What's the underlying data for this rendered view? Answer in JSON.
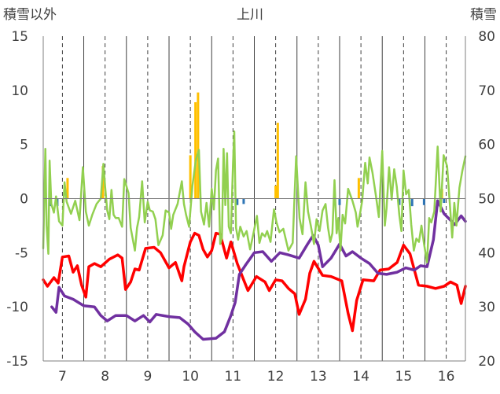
{
  "chart_data": {
    "type": "line",
    "title": "上川",
    "ylabel_left": "積雪以外",
    "ylabel_right": "積雪",
    "ylim_left": [
      -15,
      15
    ],
    "ylim_right": [
      20,
      80
    ],
    "yticks_left": [
      -15,
      -10,
      -5,
      0,
      5,
      10,
      15
    ],
    "yticks_right": [
      20,
      30,
      40,
      50,
      60,
      70,
      80
    ],
    "yticks_left_labels": [
      "-15",
      "-10",
      "-5",
      "0",
      "5",
      "10",
      "15"
    ],
    "yticks_right_labels": [
      "20",
      "30",
      "40",
      "50",
      "60",
      "70",
      "80"
    ],
    "xlim": [
      6.55,
      16.45
    ],
    "x_ticks": [
      7,
      8,
      9,
      10,
      11,
      12,
      13,
      14,
      15,
      16
    ],
    "x_tick_labels": [
      "7",
      "8",
      "9",
      "10",
      "11",
      "12",
      "13",
      "14",
      "15",
      "16"
    ],
    "grid": "vertical",
    "legend": "none",
    "colors": {
      "red": "#ff0000",
      "purple": "#7030a0",
      "green": "#92d050",
      "orange": "#ffc000",
      "blue": "#2e75b6",
      "axis": "#7f7f7f",
      "grid": "#404040"
    },
    "series": [
      {
        "axis": "left",
        "color": "#ff0000",
        "points": [
          [
            6.55,
            -7.5
          ],
          [
            6.65,
            -8.1
          ],
          [
            6.8,
            -7.3
          ],
          [
            6.9,
            -7.8
          ],
          [
            7.0,
            -5.4
          ],
          [
            7.15,
            -5.3
          ],
          [
            7.25,
            -6.8
          ],
          [
            7.35,
            -6.2
          ],
          [
            7.45,
            -8.0
          ],
          [
            7.55,
            -9.1
          ],
          [
            7.62,
            -6.3
          ],
          [
            7.75,
            -6.0
          ],
          [
            7.9,
            -6.3
          ],
          [
            8.1,
            -5.6
          ],
          [
            8.3,
            -5.2
          ],
          [
            8.4,
            -5.5
          ],
          [
            8.48,
            -8.4
          ],
          [
            8.6,
            -7.7
          ],
          [
            8.7,
            -6.5
          ],
          [
            8.8,
            -6.6
          ],
          [
            8.95,
            -4.6
          ],
          [
            9.15,
            -4.5
          ],
          [
            9.3,
            -5.0
          ],
          [
            9.5,
            -6.4
          ],
          [
            9.65,
            -5.9
          ],
          [
            9.8,
            -7.6
          ],
          [
            9.85,
            -6.3
          ],
          [
            10.0,
            -4.0
          ],
          [
            10.1,
            -3.2
          ],
          [
            10.2,
            -3.4
          ],
          [
            10.3,
            -4.7
          ],
          [
            10.4,
            -5.4
          ],
          [
            10.5,
            -4.8
          ],
          [
            10.6,
            -3.2
          ],
          [
            10.7,
            -3.3
          ],
          [
            10.85,
            -5.5
          ],
          [
            10.95,
            -4.0
          ],
          [
            11.1,
            -6.0
          ],
          [
            11.25,
            -7.5
          ],
          [
            11.35,
            -8.5
          ],
          [
            11.55,
            -7.2
          ],
          [
            11.75,
            -7.7
          ],
          [
            11.85,
            -8.5
          ],
          [
            12.0,
            -7.5
          ],
          [
            12.15,
            -7.6
          ],
          [
            12.3,
            -8.3
          ],
          [
            12.45,
            -8.8
          ],
          [
            12.55,
            -10.7
          ],
          [
            12.7,
            -9.3
          ],
          [
            12.8,
            -6.9
          ],
          [
            12.9,
            -5.8
          ],
          [
            13.1,
            -7.1
          ],
          [
            13.3,
            -7.2
          ],
          [
            13.55,
            -7.6
          ],
          [
            13.7,
            -10.6
          ],
          [
            13.8,
            -12.2
          ],
          [
            13.9,
            -9.4
          ],
          [
            14.05,
            -7.5
          ],
          [
            14.3,
            -7.6
          ],
          [
            14.45,
            -6.6
          ],
          [
            14.65,
            -6.5
          ],
          [
            14.85,
            -5.9
          ],
          [
            15.0,
            -4.3
          ],
          [
            15.15,
            -5.1
          ],
          [
            15.35,
            -8.0
          ],
          [
            15.55,
            -8.1
          ],
          [
            15.75,
            -8.3
          ],
          [
            15.95,
            -8.1
          ],
          [
            16.1,
            -7.7
          ],
          [
            16.25,
            -8.0
          ],
          [
            16.35,
            -9.7
          ],
          [
            16.45,
            -8.1
          ]
        ]
      },
      {
        "axis": "left",
        "color": "#7030a0",
        "points": [
          [
            6.75,
            -10.0
          ],
          [
            6.85,
            -10.5
          ],
          [
            6.92,
            -8.2
          ],
          [
            7.05,
            -9.0
          ],
          [
            7.25,
            -9.3
          ],
          [
            7.5,
            -9.9
          ],
          [
            7.75,
            -10.0
          ],
          [
            7.9,
            -10.8
          ],
          [
            8.05,
            -11.3
          ],
          [
            8.25,
            -10.8
          ],
          [
            8.5,
            -10.8
          ],
          [
            8.7,
            -11.3
          ],
          [
            8.9,
            -10.8
          ],
          [
            9.05,
            -11.4
          ],
          [
            9.2,
            -10.7
          ],
          [
            9.5,
            -10.9
          ],
          [
            9.75,
            -11.0
          ],
          [
            9.95,
            -11.6
          ],
          [
            10.1,
            -12.3
          ],
          [
            10.3,
            -13.0
          ],
          [
            10.6,
            -12.9
          ],
          [
            10.8,
            -12.3
          ],
          [
            10.95,
            -10.8
          ],
          [
            11.05,
            -9.6
          ],
          [
            11.15,
            -7.0
          ],
          [
            11.3,
            -6.1
          ],
          [
            11.5,
            -5.0
          ],
          [
            11.7,
            -4.9
          ],
          [
            11.9,
            -5.8
          ],
          [
            12.1,
            -5.0
          ],
          [
            12.3,
            -5.2
          ],
          [
            12.55,
            -5.5
          ],
          [
            12.75,
            -4.2
          ],
          [
            12.88,
            -3.4
          ],
          [
            13.0,
            -4.3
          ],
          [
            13.1,
            -6.3
          ],
          [
            13.3,
            -5.5
          ],
          [
            13.5,
            -4.2
          ],
          [
            13.65,
            -5.3
          ],
          [
            13.8,
            -4.9
          ],
          [
            14.0,
            -5.5
          ],
          [
            14.2,
            -6.0
          ],
          [
            14.4,
            -6.9
          ],
          [
            14.6,
            -7.0
          ],
          [
            14.85,
            -6.8
          ],
          [
            15.05,
            -6.4
          ],
          [
            15.25,
            -6.6
          ],
          [
            15.4,
            -6.2
          ],
          [
            15.55,
            -6.3
          ],
          [
            15.7,
            -3.8
          ],
          [
            15.8,
            -0.2
          ],
          [
            15.95,
            -1.4
          ],
          [
            16.1,
            -2.0
          ],
          [
            16.2,
            -2.4
          ],
          [
            16.35,
            -1.6
          ],
          [
            16.45,
            -2.1
          ]
        ]
      },
      {
        "axis": "left",
        "color": "#92d050",
        "points": [
          [
            6.55,
            -4.6
          ],
          [
            6.6,
            4.6
          ],
          [
            6.63,
            -2.5
          ],
          [
            6.67,
            -5.1
          ],
          [
            6.7,
            3.5
          ],
          [
            6.74,
            -0.5
          ],
          [
            6.8,
            -1.3
          ],
          [
            6.85,
            0.2
          ],
          [
            6.92,
            -2.1
          ],
          [
            7.0,
            -2.5
          ],
          [
            7.05,
            1.5
          ],
          [
            7.1,
            -0.3
          ],
          [
            7.2,
            -1.4
          ],
          [
            7.3,
            -0.2
          ],
          [
            7.4,
            -2.0
          ],
          [
            7.48,
            2.9
          ],
          [
            7.55,
            -1.2
          ],
          [
            7.62,
            -2.5
          ],
          [
            7.7,
            -1.5
          ],
          [
            7.8,
            -0.5
          ],
          [
            7.9,
            0.0
          ],
          [
            7.96,
            3.2
          ],
          [
            8.0,
            1.1
          ],
          [
            8.05,
            -1.1
          ],
          [
            8.1,
            -1.9
          ],
          [
            8.15,
            0.8
          ],
          [
            8.2,
            -1.5
          ],
          [
            8.25,
            -1.8
          ],
          [
            8.32,
            -1.8
          ],
          [
            8.4,
            -2.6
          ],
          [
            8.45,
            1.8
          ],
          [
            8.55,
            0.5
          ],
          [
            8.6,
            -2.7
          ],
          [
            8.7,
            -4.8
          ],
          [
            8.75,
            -2.7
          ],
          [
            8.8,
            -1.7
          ],
          [
            8.87,
            1.6
          ],
          [
            8.93,
            -2.2
          ],
          [
            9.0,
            -0.3
          ],
          [
            9.05,
            -1.1
          ],
          [
            9.12,
            -1.2
          ],
          [
            9.18,
            -1.9
          ],
          [
            9.25,
            -4.3
          ],
          [
            9.35,
            -3.4
          ],
          [
            9.42,
            -1.1
          ],
          [
            9.5,
            -1.3
          ],
          [
            9.55,
            -2.8
          ],
          [
            9.6,
            -1.5
          ],
          [
            9.7,
            -0.5
          ],
          [
            9.8,
            1.6
          ],
          [
            9.85,
            -0.5
          ],
          [
            9.9,
            -1.5
          ],
          [
            9.97,
            -2.6
          ],
          [
            10.05,
            1.2
          ],
          [
            10.13,
            3.6
          ],
          [
            10.2,
            4.5
          ],
          [
            10.25,
            -1.2
          ],
          [
            10.32,
            -2.4
          ],
          [
            10.38,
            -0.4
          ],
          [
            10.44,
            -2.6
          ],
          [
            10.5,
            0.9
          ],
          [
            10.55,
            -1.0
          ],
          [
            10.6,
            2.6
          ],
          [
            10.65,
            3.7
          ],
          [
            10.7,
            -4.2
          ],
          [
            10.74,
            -3.6
          ],
          [
            10.78,
            4.6
          ],
          [
            10.82,
            -0.6
          ],
          [
            10.86,
            4.2
          ],
          [
            10.9,
            -2.6
          ],
          [
            10.95,
            -3.2
          ],
          [
            11.0,
            3.2
          ],
          [
            11.03,
            6.2
          ],
          [
            11.07,
            -2.7
          ],
          [
            11.12,
            -3.8
          ],
          [
            11.17,
            -2.6
          ],
          [
            11.25,
            -3.5
          ],
          [
            11.32,
            -3.0
          ],
          [
            11.4,
            -4.7
          ],
          [
            11.48,
            -3.2
          ],
          [
            11.56,
            -1.6
          ],
          [
            11.62,
            -4.1
          ],
          [
            11.68,
            -3.2
          ],
          [
            11.75,
            -3.5
          ],
          [
            11.8,
            -3.0
          ],
          [
            11.88,
            -4.0
          ],
          [
            11.96,
            -1.0
          ],
          [
            12.02,
            -2.2
          ],
          [
            12.09,
            -3.1
          ],
          [
            12.18,
            -2.8
          ],
          [
            12.3,
            -4.8
          ],
          [
            12.4,
            -4.1
          ],
          [
            12.48,
            3.9
          ],
          [
            12.56,
            -1.8
          ],
          [
            12.63,
            -3.3
          ],
          [
            12.7,
            1.5
          ],
          [
            12.76,
            -1.2
          ],
          [
            12.83,
            -2.6
          ],
          [
            12.9,
            -4.2
          ],
          [
            12.96,
            -1.9
          ],
          [
            13.03,
            -3.0
          ],
          [
            13.1,
            -1.1
          ],
          [
            13.17,
            -0.5
          ],
          [
            13.23,
            -2.7
          ],
          [
            13.28,
            -4.0
          ],
          [
            13.33,
            -3.2
          ],
          [
            13.38,
            1.7
          ],
          [
            13.43,
            -3.2
          ],
          [
            13.47,
            -1.8
          ],
          [
            13.52,
            -4.8
          ],
          [
            13.57,
            -1.5
          ],
          [
            13.63,
            -2.3
          ],
          [
            13.7,
            0.9
          ],
          [
            13.8,
            -0.2
          ],
          [
            13.88,
            -1.3
          ],
          [
            13.92,
            -2.6
          ],
          [
            13.97,
            -1.6
          ],
          [
            14.03,
            -0.2
          ],
          [
            14.1,
            3.3
          ],
          [
            14.16,
            1.4
          ],
          [
            14.2,
            3.8
          ],
          [
            14.27,
            2.4
          ],
          [
            14.35,
            0.3
          ],
          [
            14.42,
            -1.7
          ],
          [
            14.5,
            4.4
          ],
          [
            14.56,
            -2.5
          ],
          [
            14.6,
            -0.9
          ],
          [
            14.66,
            2.9
          ],
          [
            14.72,
            -0.1
          ],
          [
            14.78,
            2.7
          ],
          [
            14.84,
            1.1
          ],
          [
            14.9,
            -1.5
          ],
          [
            14.95,
            -3.0
          ],
          [
            15.0,
            2.6
          ],
          [
            15.06,
            0.4
          ],
          [
            15.12,
            0.8
          ],
          [
            15.18,
            -2.4
          ],
          [
            15.24,
            -4.8
          ],
          [
            15.3,
            -3.7
          ],
          [
            15.36,
            -4.0
          ],
          [
            15.42,
            -2.5
          ],
          [
            15.48,
            -4.2
          ],
          [
            15.55,
            -5.9
          ],
          [
            15.6,
            -1.8
          ],
          [
            15.65,
            -2.2
          ],
          [
            15.72,
            -1.2
          ],
          [
            15.8,
            4.8
          ],
          [
            15.87,
            -1.2
          ],
          [
            15.94,
            4.0
          ],
          [
            16.02,
            3.0
          ],
          [
            16.09,
            -0.8
          ],
          [
            16.14,
            -3.6
          ],
          [
            16.19,
            -0.4
          ],
          [
            16.24,
            -2.5
          ],
          [
            16.31,
            1.0
          ],
          [
            16.38,
            2.6
          ],
          [
            16.45,
            3.9
          ]
        ]
      }
    ],
    "bars": [
      {
        "axis": "left",
        "color": "#ffc000",
        "x": [
          7.12,
          7.95,
          10.0,
          10.12,
          10.18,
          12.0,
          12.05,
          13.95,
          15.9
        ],
        "values": [
          1.9,
          3.0,
          4.0,
          8.9,
          9.8,
          1.2,
          7.0,
          1.9,
          0.9
        ]
      },
      {
        "axis": "left",
        "color": "#2e75b6",
        "x": [
          6.72,
          6.88,
          11.1,
          11.25,
          13.5,
          14.9,
          15.2,
          15.48,
          15.95
        ],
        "values": [
          -0.7,
          -0.7,
          -0.6,
          -0.5,
          -0.6,
          -0.6,
          -0.7,
          -0.6,
          -0.4
        ]
      }
    ]
  }
}
